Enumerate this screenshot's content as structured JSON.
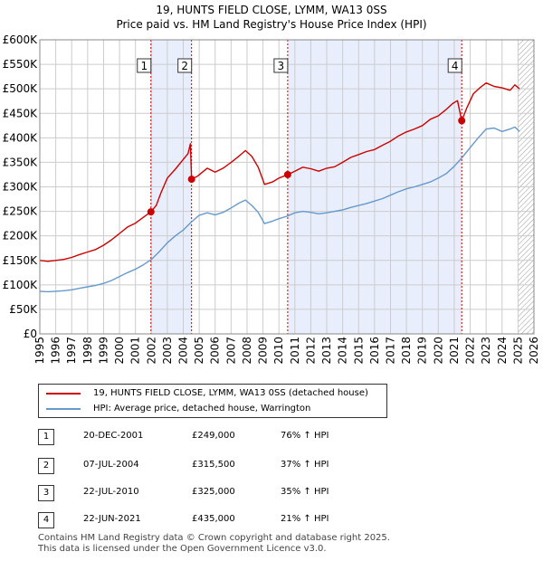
{
  "title": "19, HUNTS FIELD CLOSE, LYMM, WA13 0SS",
  "subtitle": "Price paid vs. HM Land Registry's House Price Index (HPI)",
  "colors": {
    "property": "#cc0000",
    "hpi": "#6699cc",
    "shade": "#e8eefb",
    "grid": "#cccccc",
    "marker_line": "#cc0000"
  },
  "chart_data": {
    "type": "line",
    "title": "19, HUNTS FIELD CLOSE, LYMM, WA13 0SS",
    "subtitle": "Price paid vs. HM Land Registry's House Price Index (HPI)",
    "xlim": [
      1995,
      2026
    ],
    "ylim": [
      0,
      600000
    ],
    "yticks": [
      0,
      50000,
      100000,
      150000,
      200000,
      250000,
      300000,
      350000,
      400000,
      450000,
      500000,
      550000,
      600000
    ],
    "ytick_labels": [
      "£0",
      "£50K",
      "£100K",
      "£150K",
      "£200K",
      "£250K",
      "£300K",
      "£350K",
      "£400K",
      "£450K",
      "£500K",
      "£550K",
      "£600K"
    ],
    "xticks": [
      1995,
      1996,
      1997,
      1998,
      1999,
      2000,
      2001,
      2002,
      2003,
      2004,
      2005,
      2006,
      2007,
      2008,
      2009,
      2010,
      2011,
      2012,
      2013,
      2014,
      2015,
      2016,
      2017,
      2018,
      2019,
      2020,
      2021,
      2022,
      2023,
      2024,
      2025,
      2026
    ],
    "shaded_ranges": [
      [
        2001.97,
        2004.52
      ],
      [
        2010.55,
        2021.47
      ]
    ],
    "hatch_from": 2025.0,
    "series": [
      {
        "name": "19, HUNTS FIELD CLOSE, LYMM, WA13 0SS (detached house)",
        "color": "#cc0000",
        "x": [
          1995,
          1995.5,
          1996,
          1996.5,
          1997,
          1997.5,
          1998,
          1998.5,
          1999,
          1999.5,
          2000,
          2000.5,
          2001,
          2001.5,
          2001.97,
          2002.3,
          2002.6,
          2003,
          2003.5,
          2004,
          2004.3,
          2004.45,
          2004.52,
          2004.9,
          2005.5,
          2006,
          2006.5,
          2007,
          2007.5,
          2007.9,
          2008.3,
          2008.7,
          2009.1,
          2009.6,
          2010,
          2010.55,
          2011,
          2011.5,
          2012,
          2012.5,
          2013,
          2013.5,
          2014,
          2014.5,
          2015,
          2015.5,
          2016,
          2016.5,
          2017,
          2017.5,
          2018,
          2018.5,
          2019,
          2019.5,
          2020,
          2020.5,
          2020.9,
          2021.2,
          2021.47,
          2021.8,
          2022.2,
          2022.6,
          2023,
          2023.5,
          2024,
          2024.5,
          2024.8,
          2025.1
        ],
        "y": [
          150000,
          148000,
          150000,
          152000,
          156000,
          162000,
          167000,
          172000,
          181000,
          192000,
          205000,
          218000,
          226000,
          238000,
          249000,
          262000,
          288000,
          318000,
          336000,
          356000,
          368000,
          388000,
          315500,
          322000,
          338000,
          330000,
          338000,
          350000,
          363000,
          374000,
          362000,
          340000,
          305000,
          310000,
          318000,
          325000,
          332000,
          340000,
          337000,
          332000,
          338000,
          341000,
          350000,
          360000,
          366000,
          372000,
          376000,
          385000,
          393000,
          404000,
          412000,
          418000,
          425000,
          438000,
          445000,
          458000,
          470000,
          476000,
          435000,
          462000,
          490000,
          502000,
          512000,
          505000,
          502000,
          497000,
          508000,
          500000
        ]
      },
      {
        "name": "HPI: Average price, detached house, Warrington",
        "color": "#6699cc",
        "x": [
          1995,
          1995.5,
          1996,
          1996.5,
          1997,
          1997.5,
          1998,
          1998.5,
          1999,
          1999.5,
          2000,
          2000.5,
          2001,
          2001.5,
          2002,
          2002.5,
          2003,
          2003.5,
          2004,
          2004.5,
          2005,
          2005.5,
          2006,
          2006.5,
          2007,
          2007.5,
          2007.9,
          2008.3,
          2008.7,
          2009.1,
          2009.6,
          2010,
          2010.5,
          2011,
          2011.5,
          2012,
          2012.5,
          2013,
          2013.5,
          2014,
          2014.5,
          2015,
          2015.5,
          2016,
          2016.5,
          2017,
          2017.5,
          2018,
          2018.5,
          2019,
          2019.5,
          2020,
          2020.5,
          2021,
          2021.5,
          2022,
          2022.5,
          2023,
          2023.5,
          2024,
          2024.5,
          2024.8,
          2025.1
        ],
        "y": [
          87000,
          86000,
          87000,
          88000,
          90000,
          93000,
          96000,
          99000,
          103000,
          109000,
          117000,
          125000,
          132000,
          141000,
          152000,
          168000,
          186000,
          200000,
          212000,
          228000,
          242000,
          247000,
          243000,
          248000,
          257000,
          267000,
          273000,
          262000,
          248000,
          225000,
          230000,
          235000,
          240000,
          247000,
          250000,
          248000,
          245000,
          247000,
          250000,
          253000,
          258000,
          262000,
          266000,
          271000,
          276000,
          283000,
          290000,
          296000,
          300000,
          305000,
          310000,
          318000,
          327000,
          342000,
          360000,
          380000,
          400000,
          418000,
          420000,
          413000,
          418000,
          422000,
          413000
        ]
      }
    ],
    "sales": [
      {
        "label": "1",
        "year": 2001.97,
        "price": 249000
      },
      {
        "label": "2",
        "year": 2004.52,
        "price": 315500
      },
      {
        "label": "3",
        "year": 2010.55,
        "price": 325000
      },
      {
        "label": "4",
        "year": 2021.47,
        "price": 435000
      }
    ]
  },
  "legend": {
    "property_label": "19, HUNTS FIELD CLOSE, LYMM, WA13 0SS (detached house)",
    "hpi_label": "HPI: Average price, detached house, Warrington"
  },
  "table": [
    {
      "num": "1",
      "date": "20-DEC-2001",
      "price": "£249,000",
      "hpi": "76% ↑ HPI"
    },
    {
      "num": "2",
      "date": "07-JUL-2004",
      "price": "£315,500",
      "hpi": "37% ↑ HPI"
    },
    {
      "num": "3",
      "date": "22-JUL-2010",
      "price": "£325,000",
      "hpi": "35% ↑ HPI"
    },
    {
      "num": "4",
      "date": "22-JUN-2021",
      "price": "£435,000",
      "hpi": "21% ↑ HPI"
    }
  ],
  "footer": {
    "line1": "Contains HM Land Registry data © Crown copyright and database right 2025.",
    "line2": "This data is licensed under the Open Government Licence v3.0."
  }
}
